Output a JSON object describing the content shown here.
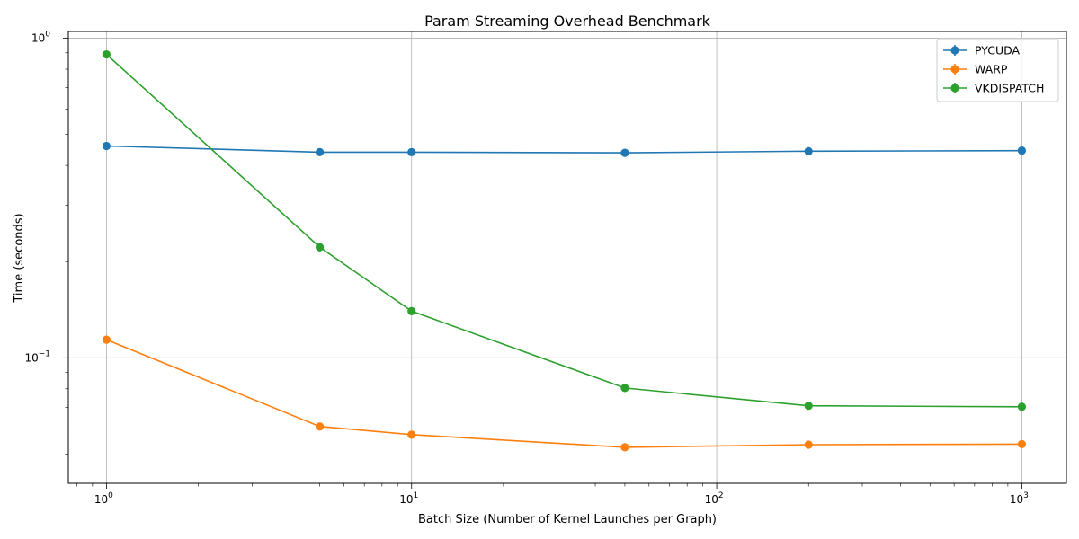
{
  "chart_data": {
    "type": "line",
    "title": "Param Streaming Overhead Benchmark",
    "xlabel": "Batch Size (Number of Kernel Launches per Graph)",
    "ylabel": "Time (seconds)",
    "xscale": "log",
    "yscale": "log",
    "xlim": [
      0.75,
      1400
    ],
    "ylim": [
      0.0405,
      1.05
    ],
    "grid": true,
    "legend_position": "top-right",
    "x_ticks": [
      {
        "value": 1,
        "base": "10",
        "exp": "0"
      },
      {
        "value": 10,
        "base": "10",
        "exp": "1"
      },
      {
        "value": 100,
        "base": "10",
        "exp": "2"
      },
      {
        "value": 1000,
        "base": "10",
        "exp": "3"
      }
    ],
    "y_ticks": [
      {
        "value": 0.1,
        "base": "10",
        "exp": "−1"
      },
      {
        "value": 1,
        "base": "10",
        "exp": "0"
      }
    ],
    "x": [
      1,
      5,
      10,
      50,
      200,
      1000
    ],
    "series": [
      {
        "name": "PYCUDA",
        "color": "#1f77b4",
        "values": [
          0.46,
          0.44,
          0.44,
          0.438,
          0.443,
          0.445
        ],
        "errors": [
          0.003,
          0.003,
          0.003,
          0.003,
          0.003,
          0.003
        ]
      },
      {
        "name": "WARP",
        "color": "#ff7f0e",
        "values": [
          0.114,
          0.061,
          0.0575,
          0.0525,
          0.0535,
          0.0537
        ],
        "errors": [
          0.003,
          0.0015,
          0.001,
          0.001,
          0.0012,
          0.0015
        ]
      },
      {
        "name": "VKDISPATCH",
        "color": "#2ca02c",
        "values": [
          0.89,
          0.222,
          0.14,
          0.0805,
          0.0708,
          0.0703
        ],
        "errors": [
          0.01,
          0.007,
          0.002,
          0.001,
          0.001,
          0.001
        ]
      }
    ]
  }
}
